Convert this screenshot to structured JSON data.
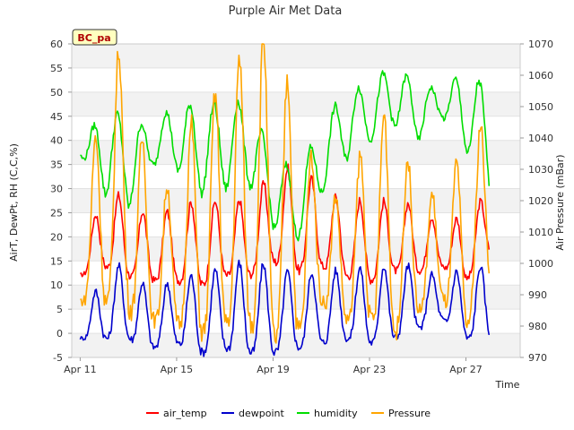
{
  "chart_data": {
    "type": "line",
    "title": "Purple Air Met Data",
    "site_badge": "BC_pa",
    "xlabel": "Time",
    "ylabel_left": "AirT, DewPt, RH (C,C,%)",
    "ylabel_right": "Air Pressure (mBar)",
    "x_start_date": "Apr 11",
    "x_end_date": "Apr 28",
    "x_tick_labels": [
      "Apr 11",
      "Apr 15",
      "Apr 19",
      "Apr 23",
      "Apr 27"
    ],
    "ylim_left": [
      -5,
      60
    ],
    "yticks_left": [
      "-5",
      "0",
      "5",
      "10",
      "15",
      "20",
      "25",
      "30",
      "35",
      "40",
      "45",
      "50",
      "55",
      "60"
    ],
    "ylim_right": [
      970,
      1070
    ],
    "yticks_right": [
      "970",
      "980",
      "990",
      "1000",
      "1010",
      "1020",
      "1030",
      "1040",
      "1050",
      "1060",
      "1070"
    ],
    "grid": "horizontal bands",
    "legend_position": "bottom",
    "daily_dates": [
      "Apr 11",
      "Apr 12",
      "Apr 13",
      "Apr 14",
      "Apr 15",
      "Apr 16",
      "Apr 17",
      "Apr 18",
      "Apr 19",
      "Apr 20",
      "Apr 21",
      "Apr 22",
      "Apr 23",
      "Apr 24",
      "Apr 25",
      "Apr 26",
      "Apr 27",
      "Apr 28"
    ],
    "series": [
      {
        "name": "air_temp",
        "color": "#ff0000",
        "axis": "left",
        "daily_min": [
          12,
          14,
          12,
          11,
          11,
          10,
          12,
          12,
          15,
          13,
          14,
          12,
          11,
          13,
          13,
          14,
          11,
          17
        ],
        "daily_max": [
          14,
          31,
          27,
          24,
          26,
          28,
          27,
          28,
          33,
          35,
          30,
          27,
          28,
          27,
          27,
          22,
          25,
          29
        ]
      },
      {
        "name": "dewpoint",
        "color": "#0000cc",
        "axis": "left",
        "daily_min": [
          -1,
          -1,
          -1,
          -3,
          -2,
          -4,
          -3,
          -4,
          -4,
          -3,
          -2,
          -1,
          -2,
          -1,
          1,
          3,
          -1,
          -1
        ],
        "daily_max": [
          0,
          14,
          14,
          8,
          12,
          12,
          14,
          15,
          14,
          12,
          13,
          13,
          14,
          14,
          14,
          11,
          14,
          14
        ]
      },
      {
        "name": "humidity",
        "color": "#00dd00",
        "axis": "left",
        "daily_min": [
          37,
          29,
          26,
          35,
          34,
          29,
          30,
          31,
          22,
          19,
          29,
          36,
          40,
          43,
          40,
          45,
          38,
          29
        ],
        "daily_max": [
          38,
          47,
          44,
          43,
          48,
          47,
          48,
          48,
          36,
          34,
          42,
          51,
          51,
          56,
          51,
          51,
          54,
          51
        ]
      },
      {
        "name": "Pressure",
        "color": "#ffa500",
        "axis": "right",
        "daily_min": [
          988,
          988,
          986,
          982,
          981,
          978,
          980,
          982,
          976,
          978,
          988,
          982,
          982,
          978,
          985,
          989,
          980,
          996
        ],
        "daily_max": [
          995,
          1068,
          1068,
          1020,
          1028,
          1055,
          1054,
          1073,
          1072,
          1050,
          1024,
          1020,
          1044,
          1050,
          1022,
          1022,
          1038,
          1048
        ]
      }
    ]
  }
}
